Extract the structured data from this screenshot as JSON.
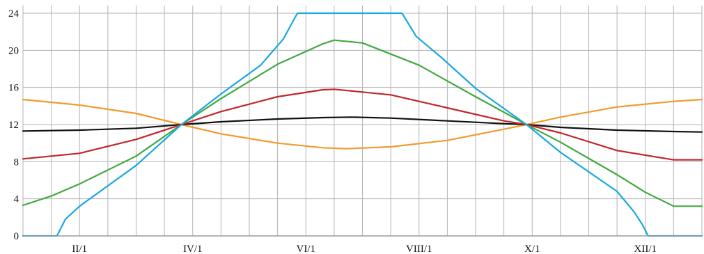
{
  "chart_data": {
    "type": "line",
    "title": "",
    "xlabel": "",
    "ylabel": "",
    "xlim": [
      0,
      12
    ],
    "ylim": [
      0,
      24
    ],
    "grid": true,
    "legend": "none",
    "x_ticks": [
      {
        "value": 1,
        "label": "II/1"
      },
      {
        "value": 3,
        "label": "IV/1"
      },
      {
        "value": 5,
        "label": "VI/1"
      },
      {
        "value": 7,
        "label": "VIII/1"
      },
      {
        "value": 9,
        "label": "X/1"
      },
      {
        "value": 11,
        "label": "XII/1"
      }
    ],
    "x_grid": [
      0.5,
      1,
      1.5,
      2,
      2.5,
      3,
      3.5,
      4,
      4.5,
      5,
      5.5,
      6,
      6.5,
      7,
      7.5,
      8,
      8.5,
      9,
      9.5,
      10,
      10.5,
      11,
      11.5,
      12
    ],
    "y_ticks": [
      0,
      4,
      8,
      12,
      16,
      20,
      24
    ],
    "series": [
      {
        "color": "#f39a2d",
        "points": [
          [
            0,
            14.7
          ],
          [
            1,
            14.1
          ],
          [
            2,
            13.2
          ],
          [
            2.8,
            12.0
          ],
          [
            3.5,
            11.0
          ],
          [
            4.5,
            10.0
          ],
          [
            5.3,
            9.5
          ],
          [
            5.7,
            9.4
          ],
          [
            6.5,
            9.6
          ],
          [
            7.5,
            10.3
          ],
          [
            8.5,
            11.5
          ],
          [
            8.9,
            12.0
          ],
          [
            9.5,
            12.8
          ],
          [
            10.5,
            13.9
          ],
          [
            11.5,
            14.5
          ],
          [
            12,
            14.7
          ]
        ]
      },
      {
        "color": "#111111",
        "points": [
          [
            0,
            11.3
          ],
          [
            1,
            11.4
          ],
          [
            2,
            11.6
          ],
          [
            2.8,
            12.0
          ],
          [
            3.5,
            12.3
          ],
          [
            4.5,
            12.6
          ],
          [
            5.3,
            12.75
          ],
          [
            5.8,
            12.8
          ],
          [
            6.5,
            12.7
          ],
          [
            7.5,
            12.4
          ],
          [
            8.5,
            12.1
          ],
          [
            8.9,
            12.0
          ],
          [
            9.5,
            11.7
          ],
          [
            10.5,
            11.4
          ],
          [
            11.5,
            11.25
          ],
          [
            12,
            11.2
          ]
        ]
      },
      {
        "color": "#c0262c",
        "points": [
          [
            0,
            8.3
          ],
          [
            1,
            8.9
          ],
          [
            2,
            10.4
          ],
          [
            2.8,
            12.0
          ],
          [
            3.5,
            13.4
          ],
          [
            4.5,
            15.0
          ],
          [
            5.3,
            15.75
          ],
          [
            5.5,
            15.8
          ],
          [
            6.5,
            15.2
          ],
          [
            7.5,
            13.8
          ],
          [
            8.5,
            12.4
          ],
          [
            8.9,
            12.0
          ],
          [
            9.5,
            11.1
          ],
          [
            10.5,
            9.2
          ],
          [
            11.5,
            8.2
          ],
          [
            12,
            8.2
          ]
        ]
      },
      {
        "color": "#41a83e",
        "points": [
          [
            0,
            3.3
          ],
          [
            0.5,
            4.3
          ],
          [
            1,
            5.6
          ],
          [
            2,
            8.6
          ],
          [
            2.8,
            12.0
          ],
          [
            3.5,
            14.8
          ],
          [
            4.5,
            18.5
          ],
          [
            5.3,
            20.7
          ],
          [
            5.5,
            21.1
          ],
          [
            6,
            20.8
          ],
          [
            7,
            18.4
          ],
          [
            8,
            15.0
          ],
          [
            8.9,
            12.0
          ],
          [
            9.5,
            10.1
          ],
          [
            10.5,
            6.6
          ],
          [
            11,
            4.7
          ],
          [
            11.5,
            3.2
          ],
          [
            12,
            3.2
          ]
        ]
      },
      {
        "color": "#19a8e0",
        "points": [
          [
            0,
            0
          ],
          [
            0.6,
            0
          ],
          [
            0.75,
            1.8
          ],
          [
            1,
            3.2
          ],
          [
            2,
            7.6
          ],
          [
            2.8,
            12.0
          ],
          [
            3.5,
            15.3
          ],
          [
            4.2,
            18.4
          ],
          [
            4.6,
            21.2
          ],
          [
            4.85,
            24
          ],
          [
            6.7,
            24
          ],
          [
            6.95,
            21.5
          ],
          [
            7.4,
            19.2
          ],
          [
            8,
            15.9
          ],
          [
            8.9,
            12.0
          ],
          [
            9.5,
            9.0
          ],
          [
            10.5,
            4.8
          ],
          [
            10.8,
            2.6
          ],
          [
            10.95,
            1.2
          ],
          [
            11.05,
            0
          ],
          [
            12,
            0
          ]
        ]
      }
    ]
  }
}
